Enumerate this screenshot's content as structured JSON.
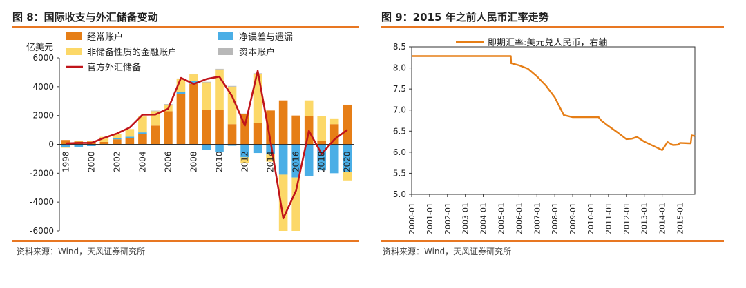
{
  "left": {
    "title": "图 8：国际收支与外汇储备变动",
    "source": "资料来源：Wind，天风证券研究所",
    "chart_data": {
      "type": "bar",
      "ylabel": "亿美元",
      "ylim": [
        -6000,
        6000
      ],
      "yticks": [
        "6000",
        "4000",
        "2000",
        "0",
        "-2000",
        "-4000",
        "-6000"
      ],
      "ytick_values": [
        6000,
        4000,
        2000,
        0,
        -2000,
        -4000,
        -6000
      ],
      "x": [
        1998,
        1999,
        2000,
        2001,
        2002,
        2003,
        2004,
        2005,
        2006,
        2007,
        2008,
        2009,
        2010,
        2011,
        2012,
        2013,
        2014,
        2015,
        2016,
        2017,
        2018,
        2019,
        2020
      ],
      "xtick_labels": [
        "1998",
        "2000",
        "2002",
        "2004",
        "2006",
        "2008",
        "2010",
        "2012",
        "2014",
        "2016",
        "2018",
        "2020"
      ],
      "legend": {
        "current": "经常账户",
        "errors": "净误差与遗漏",
        "financial": "非储备性质的金融账户",
        "capital": "资本账户",
        "reserves": "官方外汇储备"
      },
      "colors": {
        "current": "#e67e16",
        "errors": "#4aaee6",
        "financial": "#fcd868",
        "capital": "#b8b8b8",
        "reserves": "#c0141a"
      },
      "series": [
        {
          "key": "current",
          "name": "经常账户",
          "values": [
            300,
            200,
            200,
            170,
            350,
            450,
            700,
            1300,
            2300,
            3500,
            4200,
            2400,
            2400,
            1400,
            2100,
            1500,
            2350,
            3050,
            2000,
            1950,
            250,
            1400,
            2750
          ]
        },
        {
          "key": "errors",
          "name": "净误差与遗漏",
          "values": [
            -180,
            -180,
            -120,
            -50,
            80,
            80,
            130,
            0,
            0,
            140,
            200,
            -400,
            -500,
            -100,
            -900,
            -600,
            -700,
            -2100,
            -2300,
            -2200,
            -1800,
            -2000,
            -1900
          ]
        },
        {
          "key": "financial",
          "name": "非储备性质的金融账户",
          "values": [
            -60,
            50,
            20,
            350,
            300,
            530,
            1100,
            1000,
            450,
            900,
            450,
            1900,
            2800,
            2600,
            -400,
            3400,
            -500,
            -3900,
            -3700,
            1100,
            1700,
            400,
            -600
          ]
        },
        {
          "key": "capital",
          "name": "资本账户",
          "values": [
            0,
            0,
            0,
            0,
            0,
            0,
            0,
            40,
            40,
            30,
            30,
            40,
            40,
            50,
            40,
            30,
            0,
            0,
            0,
            0,
            0,
            0,
            0
          ]
        },
        {
          "key": "reserves",
          "name": "官方外汇储备",
          "values": [
            60,
            100,
            100,
            450,
            750,
            1170,
            2060,
            2070,
            2470,
            4610,
            4190,
            4530,
            4700,
            3340,
            1300,
            5100,
            220,
            -5130,
            -3200,
            930,
            -670,
            350,
            1000
          ]
        }
      ]
    }
  },
  "right": {
    "title": "图 9：2015 年之前人民币汇率走势",
    "source": "资料来源：Wind，天风证券研究所",
    "chart_data": {
      "type": "line",
      "series_name": "即期汇率:美元兑人民币，右轴",
      "color": "#e67e16",
      "ylim": [
        5.0,
        8.5
      ],
      "yticks": [
        "8.5",
        "8.0",
        "7.5",
        "7.0",
        "6.5",
        "6.0",
        "5.5",
        "5.0"
      ],
      "ytick_values": [
        8.5,
        8.0,
        7.5,
        7.0,
        6.5,
        6.0,
        5.5,
        5.0
      ],
      "xlim": [
        2000.0,
        2015.83
      ],
      "xtick_labels": [
        "2000-01",
        "2001-01",
        "2002-01",
        "2003-01",
        "2004-01",
        "2005-01",
        "2006-01",
        "2007-01",
        "2008-01",
        "2009-01",
        "2010-01",
        "2011-01",
        "2012-01",
        "2013-01",
        "2014-01",
        "2015-01"
      ],
      "points": [
        [
          2000.0,
          8.28
        ],
        [
          2001.0,
          8.28
        ],
        [
          2002.0,
          8.28
        ],
        [
          2003.0,
          8.28
        ],
        [
          2004.0,
          8.28
        ],
        [
          2005.0,
          8.28
        ],
        [
          2005.54,
          8.28
        ],
        [
          2005.56,
          8.11
        ],
        [
          2006.0,
          8.06
        ],
        [
          2006.5,
          7.98
        ],
        [
          2007.0,
          7.8
        ],
        [
          2007.5,
          7.58
        ],
        [
          2008.0,
          7.3
        ],
        [
          2008.5,
          6.88
        ],
        [
          2009.0,
          6.83
        ],
        [
          2009.5,
          6.83
        ],
        [
          2010.0,
          6.83
        ],
        [
          2010.45,
          6.83
        ],
        [
          2010.6,
          6.75
        ],
        [
          2011.0,
          6.62
        ],
        [
          2011.5,
          6.47
        ],
        [
          2012.0,
          6.31
        ],
        [
          2012.3,
          6.32
        ],
        [
          2012.6,
          6.36
        ],
        [
          2013.0,
          6.25
        ],
        [
          2013.5,
          6.15
        ],
        [
          2014.0,
          6.05
        ],
        [
          2014.3,
          6.24
        ],
        [
          2014.6,
          6.17
        ],
        [
          2014.9,
          6.18
        ],
        [
          2015.0,
          6.22
        ],
        [
          2015.5,
          6.21
        ],
        [
          2015.6,
          6.21
        ],
        [
          2015.65,
          6.4
        ],
        [
          2015.83,
          6.38
        ]
      ]
    }
  }
}
